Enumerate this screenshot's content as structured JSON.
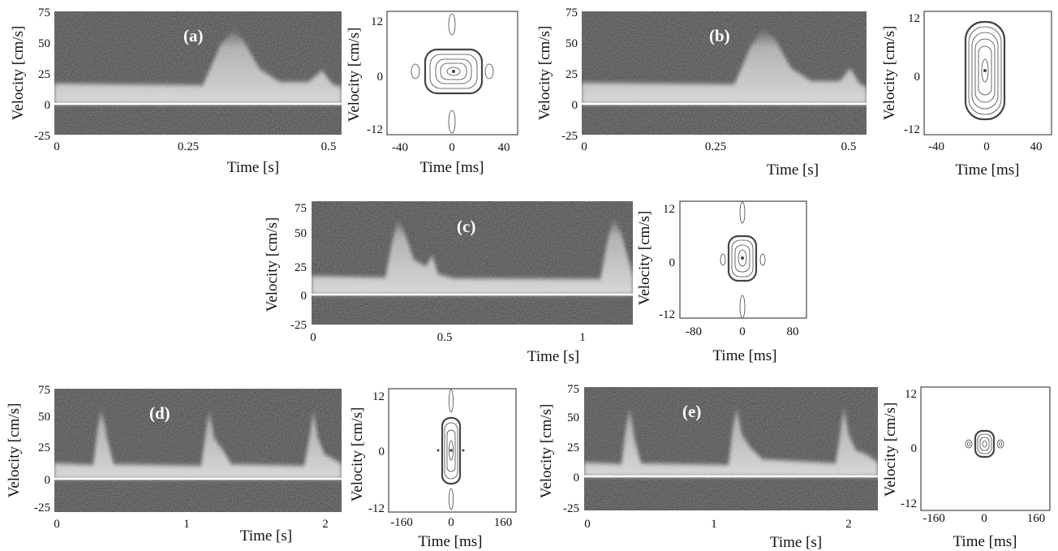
{
  "figure": {
    "panels": [
      {
        "label": "(a)",
        "spectrogram": {
          "xlabel": "Time [s]",
          "ylabel": "Velocity [cm/s]",
          "x_ticks": [
            "0",
            "0.25",
            "0.5"
          ],
          "y_ticks": [
            "75",
            "50",
            "25",
            "0",
            "-25"
          ]
        },
        "ambiguity": {
          "xlabel": "Time [ms]",
          "ylabel": "Velocity [cm/s]",
          "x_ticks": [
            "-40",
            "0",
            "40"
          ],
          "y_ticks": [
            "12",
            "0",
            "-12"
          ]
        }
      },
      {
        "label": "(b)",
        "spectrogram": {
          "xlabel": "Time [s]",
          "ylabel": "Velocity [cm/s]",
          "x_ticks": [
            "0",
            "0.25",
            "0.5"
          ],
          "y_ticks": [
            "75",
            "50",
            "25",
            "0",
            "-25"
          ]
        },
        "ambiguity": {
          "xlabel": "Time [ms]",
          "ylabel": "Velocity [cm/s]",
          "x_ticks": [
            "-40",
            "0",
            "40"
          ],
          "y_ticks": [
            "12",
            "0",
            "-12"
          ]
        }
      },
      {
        "label": "(c)",
        "spectrogram": {
          "xlabel": "Time [s]",
          "ylabel": "Velocity [cm/s]",
          "x_ticks": [
            "0",
            "0.5",
            "1"
          ],
          "y_ticks": [
            "75",
            "50",
            "25",
            "0",
            "-25"
          ]
        },
        "ambiguity": {
          "xlabel": "Time [ms]",
          "ylabel": "Velocity [cm/s]",
          "x_ticks": [
            "-80",
            "0",
            "80"
          ],
          "y_ticks": [
            "12",
            "0",
            "-12"
          ]
        }
      },
      {
        "label": "(d)",
        "spectrogram": {
          "xlabel": "Time [s]",
          "ylabel": "Velocity [cm/s]",
          "x_ticks": [
            "0",
            "1",
            "2"
          ],
          "y_ticks": [
            "75",
            "50",
            "25",
            "0",
            "-25"
          ]
        },
        "ambiguity": {
          "xlabel": "Time [ms]",
          "ylabel": "Velocity [cm/s]",
          "x_ticks": [
            "-160",
            "0",
            "160"
          ],
          "y_ticks": [
            "12",
            "0",
            "-12"
          ]
        }
      },
      {
        "label": "(e)",
        "spectrogram": {
          "xlabel": "Time [s]",
          "ylabel": "Velocity [cm/s]",
          "x_ticks": [
            "0",
            "1",
            "2"
          ],
          "y_ticks": [
            "75",
            "50",
            "25",
            "0",
            "-25"
          ]
        },
        "ambiguity": {
          "xlabel": "Time [ms]",
          "ylabel": "Velocity [cm/s]",
          "x_ticks": [
            "-160",
            "0",
            "160"
          ],
          "y_ticks": [
            "12",
            "0",
            "-12"
          ]
        }
      }
    ]
  }
}
